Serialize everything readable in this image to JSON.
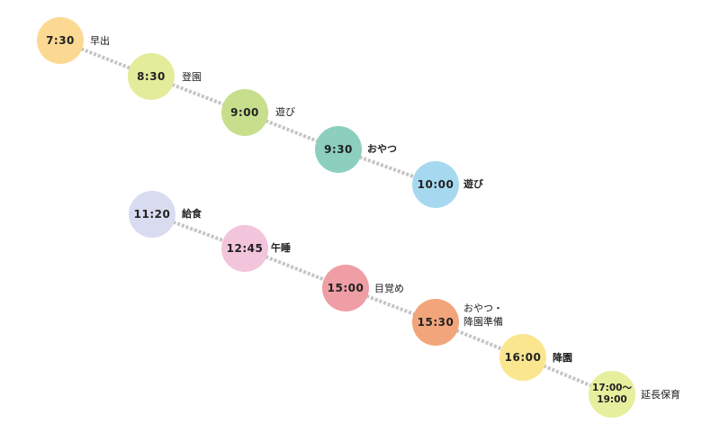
{
  "colors": {
    "yellow": "#fcd993",
    "lime": "#e2ec9b",
    "green": "#c7df8c",
    "teal": "#8ccfbf",
    "sky": "#a6d9ef",
    "lavender": "#d9dcf0",
    "pink": "#f2c5dc",
    "rose": "#ef9ea6",
    "orange": "#f2a57a",
    "paleyellow": "#fbe690",
    "yellowgreen": "#e6ef9e",
    "connector": "#c4c4c4"
  },
  "schedule": [
    {
      "time": "7:30",
      "activity": "早出"
    },
    {
      "time": "8:30",
      "activity": "登園"
    },
    {
      "time": "9:00",
      "activity": "遊び"
    },
    {
      "time": "9:30",
      "activity": "おやつ"
    },
    {
      "time": "10:00",
      "activity": "遊び"
    },
    {
      "time": "11:20",
      "activity": "給食"
    },
    {
      "time": "12:45",
      "activity": "午睡"
    },
    {
      "time": "15:00",
      "activity": "目覚め"
    },
    {
      "time": "15:30",
      "activity_line1": "おやつ・",
      "activity_line2": "降園準備"
    },
    {
      "time": "16:00",
      "activity": "降園"
    },
    {
      "time_line1": "17:00～",
      "time_line2": "19:00",
      "activity": "延長保育"
    }
  ]
}
